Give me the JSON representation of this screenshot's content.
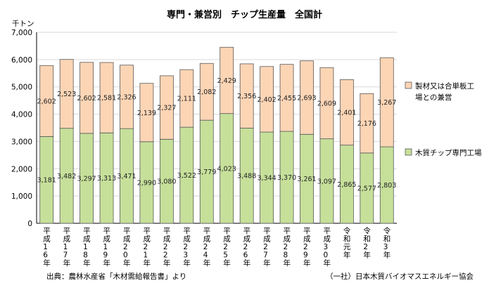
{
  "chart_data": {
    "type": "bar",
    "stacked": true,
    "title": "専門・兼営別　チップ生産量　全国計",
    "ylabel": "千トン",
    "ylim": [
      0,
      7000
    ],
    "yticks": [
      "0",
      "1,000",
      "2,000",
      "3,000",
      "4,000",
      "5,000",
      "6,000",
      "7,000"
    ],
    "grid": true,
    "legend_position": "right",
    "categories": [
      "平成16年",
      "平成17年",
      "平成18年",
      "平成19年",
      "平成20年",
      "平成21年",
      "平成22年",
      "平成23年",
      "平成24年",
      "平成25年",
      "平成26年",
      "平成27年",
      "平成28年",
      "平成29年",
      "平成30年",
      "令和元年",
      "令和2年",
      "令和3年"
    ],
    "series": [
      {
        "name": "木質チップ専門工場",
        "color": "#c6e09a",
        "values": [
          3181,
          3482,
          3297,
          3313,
          3471,
          2990,
          3080,
          3522,
          3779,
          4023,
          3488,
          3344,
          3370,
          3261,
          3097,
          2865,
          2577,
          2803
        ],
        "labels": [
          "3,181",
          "3,482",
          "3,297",
          "3,313",
          "3,471",
          "2,990",
          "3,080",
          "3,522",
          "3,779",
          "4,023",
          "3,488",
          "3,344",
          "3,370",
          "3,261",
          "3,097",
          "2,865",
          "2,577",
          "2,803"
        ]
      },
      {
        "name": "製材又は合単板工場との兼営",
        "color": "#fcd5b5",
        "values": [
          2602,
          2523,
          2602,
          2581,
          2326,
          2139,
          2327,
          2111,
          2082,
          2429,
          2356,
          2402,
          2455,
          2693,
          2609,
          2401,
          2176,
          3267
        ],
        "labels": [
          "2,602",
          "2,523",
          "2,602",
          "2,581",
          "2,326",
          "2,139",
          "2,327",
          "2,111",
          "2,082",
          "2,429",
          "2,356",
          "2,402",
          "2,455",
          "2,693",
          "2,609",
          "2,401",
          "2,176",
          "3,267"
        ]
      }
    ],
    "legend": [
      {
        "lines": [
          "製材又は合単板工",
          "場との兼営"
        ],
        "color": "#fcd5b5"
      },
      {
        "lines": [
          "木質チップ専門工場"
        ],
        "color": "#c6e09a"
      }
    ],
    "border_color": "#595959",
    "grid_color": "#d9d9d9"
  },
  "footer": {
    "source": "出典：農林水産省「木材需給報告書」より",
    "publisher": "（一社）日本木質バイオマスエネルギー協会"
  }
}
